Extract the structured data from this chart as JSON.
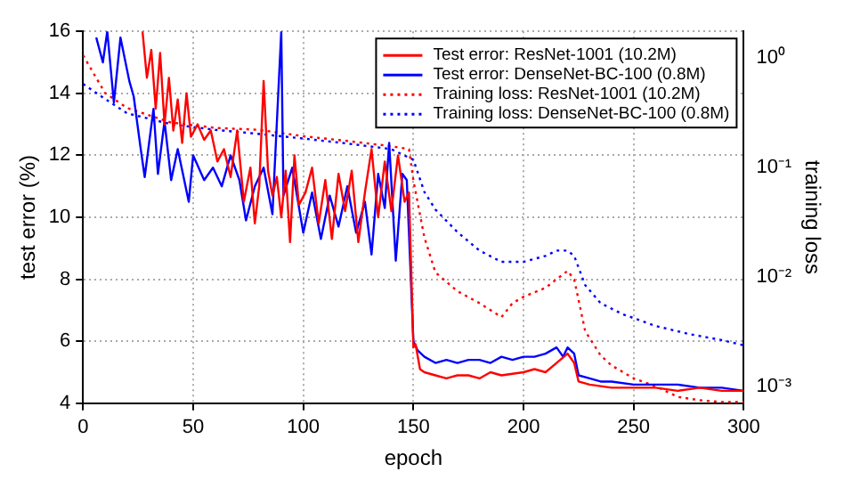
{
  "chart_data": {
    "type": "line",
    "xlabel": "epoch",
    "ylabel": "test error (%)",
    "y2label": "training loss",
    "xlim": [
      0,
      300
    ],
    "xticks": [
      0,
      50,
      100,
      150,
      200,
      250,
      300
    ],
    "ylim": [
      4,
      16
    ],
    "yticks": [
      4,
      6,
      8,
      10,
      12,
      14,
      16
    ],
    "y2lim": [
      0.00077,
      1.9
    ],
    "y2ticks": [
      {
        "value": 0.001,
        "label": "10⁻³"
      },
      {
        "value": 0.01,
        "label": "10⁻²"
      },
      {
        "value": 0.1,
        "label": "10⁻¹"
      },
      {
        "value": 1,
        "label": "10⁰"
      }
    ],
    "log": "y2",
    "grid": true,
    "legend": "top right",
    "marker": "none",
    "series": [
      {
        "name": "Test error: ResNet-1001 (10.2M)",
        "color": "#ff0000",
        "line_style": "solid",
        "x": [
          27,
          29,
          31,
          33,
          35,
          37,
          39,
          41,
          43,
          45,
          47,
          49,
          52,
          55,
          58,
          61,
          64,
          67,
          70,
          73,
          76,
          78,
          80,
          82,
          84,
          86,
          88,
          90,
          92,
          94,
          96,
          98,
          101,
          104,
          107,
          110,
          113,
          116,
          119,
          122,
          125,
          128,
          131,
          134,
          137,
          140,
          143,
          146,
          148,
          150,
          151,
          153,
          155,
          160,
          165,
          170,
          175,
          180,
          185,
          190,
          200,
          205,
          210,
          215,
          220,
          223,
          225,
          230,
          240,
          250,
          260,
          270,
          280,
          290,
          300
        ],
        "values": [
          16,
          14.5,
          15.4,
          13.5,
          15.3,
          13.0,
          14.5,
          12.8,
          13.8,
          12.4,
          14.0,
          12.6,
          13.0,
          12.5,
          12.8,
          11.8,
          12.2,
          11.3,
          12.8,
          10.5,
          11.6,
          9.8,
          11.0,
          14.4,
          11.5,
          10.7,
          11.3,
          10.0,
          11.5,
          9.2,
          12.0,
          10.4,
          10.8,
          11.6,
          9.8,
          11.2,
          9.3,
          11.4,
          10.2,
          11.5,
          9.2,
          10.8,
          12.2,
          10.0,
          11.8,
          10.2,
          12.0,
          10.5,
          10.8,
          5.8,
          5.9,
          5.1,
          5.0,
          4.9,
          4.8,
          4.9,
          4.9,
          4.8,
          5.0,
          4.9,
          5.0,
          5.1,
          5.0,
          5.3,
          5.6,
          5.3,
          4.7,
          4.6,
          4.5,
          4.5,
          4.5,
          4.4,
          4.5,
          4.4,
          4.4
        ]
      },
      {
        "name": "Test error: DenseNet-BC-100 (0.8M)",
        "color": "#0000ff",
        "line_style": "solid",
        "x": [
          6,
          9,
          11,
          14,
          17,
          21,
          23,
          26,
          28,
          32,
          34,
          37,
          40,
          43,
          48,
          50,
          55,
          59,
          63,
          67,
          71,
          74,
          78,
          82,
          86,
          90,
          91,
          95,
          100,
          104,
          108,
          112,
          116,
          120,
          124,
          128,
          131,
          134,
          137,
          139,
          142,
          145,
          147,
          150,
          152,
          155,
          160,
          165,
          170,
          175,
          180,
          185,
          190,
          195,
          200,
          205,
          210,
          215,
          218,
          220,
          223,
          225,
          230,
          235,
          240,
          250,
          260,
          270,
          280,
          290,
          300
        ],
        "values": [
          15.8,
          15.0,
          16,
          13.7,
          15.8,
          14.4,
          13.9,
          12.3,
          11.3,
          13.5,
          11.4,
          13.1,
          11.2,
          12.2,
          10.5,
          12.0,
          11.2,
          11.6,
          11.0,
          12.0,
          11.2,
          9.9,
          11.0,
          11.6,
          10.1,
          16,
          10.7,
          11.6,
          9.5,
          10.8,
          9.3,
          10.7,
          9.7,
          11.0,
          9.5,
          10.5,
          8.8,
          11.4,
          10.3,
          12.4,
          8.6,
          11.4,
          11.2,
          6.0,
          5.7,
          5.5,
          5.3,
          5.4,
          5.3,
          5.4,
          5.4,
          5.3,
          5.5,
          5.4,
          5.5,
          5.5,
          5.6,
          5.8,
          5.5,
          5.8,
          5.6,
          4.9,
          4.8,
          4.7,
          4.7,
          4.6,
          4.6,
          4.6,
          4.5,
          4.5,
          4.4
        ]
      },
      {
        "name": "Training loss: ResNet-1001 (10.2M)",
        "color": "#ff0000",
        "line_style": "dotted",
        "axis": "y2",
        "x": [
          0,
          10,
          20,
          40,
          60,
          80,
          100,
          120,
          140,
          148,
          150,
          155,
          160,
          170,
          180,
          190,
          195,
          200,
          210,
          215,
          220,
          223,
          228,
          235,
          240,
          250,
          260,
          270,
          280,
          290,
          300
        ],
        "values": [
          1.15,
          0.52,
          0.38,
          0.28,
          0.25,
          0.24,
          0.21,
          0.19,
          0.17,
          0.16,
          0.083,
          0.025,
          0.012,
          0.0081,
          0.0063,
          0.0047,
          0.0063,
          0.0072,
          0.0087,
          0.0104,
          0.0124,
          0.0104,
          0.0035,
          0.0021,
          0.0017,
          0.0013,
          0.0011,
          0.00088,
          0.00082,
          0.00079,
          0.00079
        ]
      },
      {
        "name": "Training loss: DenseNet-BC-100 (0.8M)",
        "color": "#0000ff",
        "line_style": "dotted",
        "axis": "y2",
        "x": [
          0,
          10,
          20,
          40,
          60,
          80,
          100,
          120,
          140,
          150,
          155,
          160,
          170,
          180,
          190,
          200,
          210,
          215,
          220,
          223,
          228,
          235,
          245,
          260,
          275,
          290,
          300
        ],
        "values": [
          0.63,
          0.46,
          0.34,
          0.27,
          0.24,
          0.22,
          0.2,
          0.18,
          0.16,
          0.128,
          0.065,
          0.045,
          0.028,
          0.019,
          0.015,
          0.015,
          0.017,
          0.019,
          0.019,
          0.017,
          0.0092,
          0.0063,
          0.005,
          0.0039,
          0.0033,
          0.0029,
          0.0026
        ]
      }
    ]
  }
}
